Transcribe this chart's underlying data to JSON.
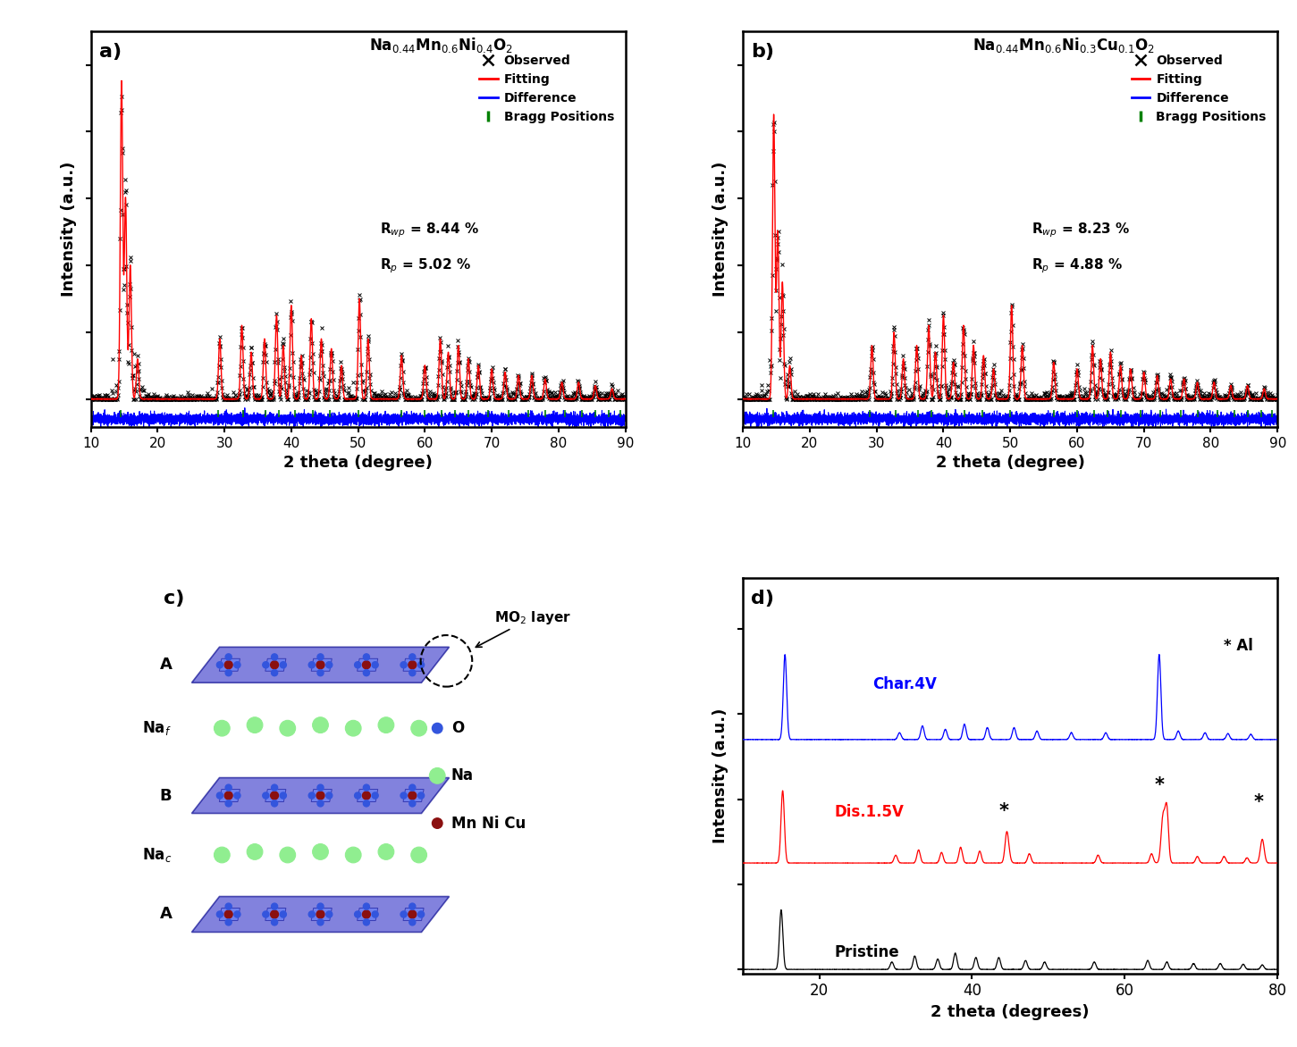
{
  "xrd_xlim": [
    10,
    90
  ],
  "xrd_xticks": [
    10,
    20,
    30,
    40,
    50,
    60,
    70,
    80,
    90
  ],
  "xrd_xlabel": "2 theta (degree)",
  "xrd_ylabel": "Intensity (a.u.)",
  "bragg_positions_a": [
    14.5,
    29.0,
    32.8,
    36.2,
    38.2,
    40.5,
    43.2,
    45.8,
    50.0,
    56.5,
    60.0,
    62.5,
    64.5,
    66.5,
    69.5,
    72.5,
    75.5,
    78.0,
    81.0,
    83.5,
    85.5,
    87.5,
    89.2
  ],
  "bragg_positions_b": [
    14.5,
    29.0,
    32.8,
    36.2,
    38.2,
    40.5,
    43.2,
    45.8,
    50.0,
    56.5,
    60.0,
    62.5,
    64.5,
    66.5,
    69.5,
    72.5,
    75.5,
    78.0,
    81.0,
    83.5,
    85.5,
    87.5,
    89.2
  ],
  "panel_a_rwp": "R$_{wp}$ = 8.44 %",
  "panel_a_rp": "R$_{p}$ = 5.02 %",
  "panel_b_rwp": "R$_{wp}$ = 8.23 %",
  "panel_b_rp": "R$_{p}$ = 4.88 %",
  "panel_d_xlim": [
    10,
    80
  ],
  "panel_d_xticks": [
    20,
    40,
    60,
    80
  ],
  "panel_d_xlabel": "2 theta (degrees)",
  "panel_d_ylabel": "Intensity (a.u.)",
  "panel_d_labels": [
    "Char.4V",
    "Dis.1.5V",
    "Pristine"
  ],
  "panel_d_colors": [
    "#0000FF",
    "#FF0000",
    "#000000"
  ],
  "mo2_color": "#4040CC",
  "na_color": "#90EE90",
  "o_color": "#4040CC",
  "metal_color": "#8B1010",
  "bg_color": "#ffffff"
}
